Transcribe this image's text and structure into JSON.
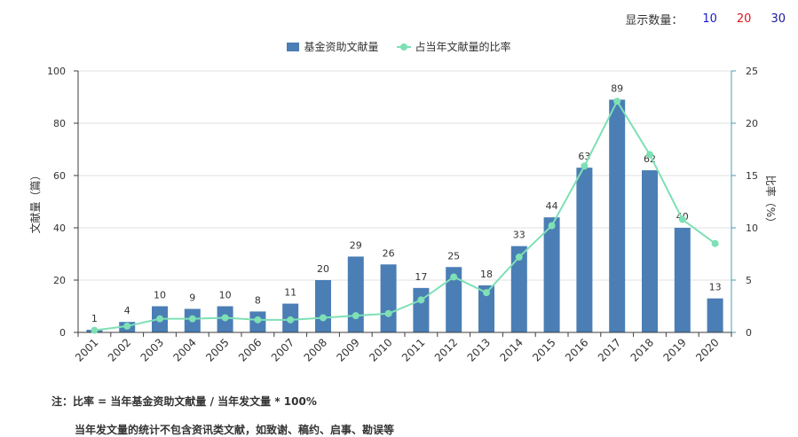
{
  "display_count": {
    "label": "显示数量：",
    "options": [
      "10",
      "20",
      "30"
    ]
  },
  "legend": {
    "bar_label": "基金资助文献量",
    "line_label": "占当年文献量的比率"
  },
  "notes": {
    "line1": "注：比率 = 当年基金资助文献量 / 当年发文量 * 100%",
    "line2": "当年发文量的统计不包含资讯类文献，如致谢、稿约、启事、勘误等"
  },
  "colors": {
    "bar": "#4a7eb5",
    "line": "#7ee0b5",
    "axis_left": "#3c3c3c",
    "axis_right": "#4a9fb0",
    "grid": "#e0e0e0"
  },
  "chart_data": {
    "type": "bar",
    "categories": [
      "2001",
      "2002",
      "2003",
      "2004",
      "2005",
      "2006",
      "2007",
      "2008",
      "2009",
      "2010",
      "2011",
      "2012",
      "2013",
      "2014",
      "2015",
      "2016",
      "2017",
      "2018",
      "2019",
      "2020"
    ],
    "series": [
      {
        "name": "基金资助文献量",
        "type": "bar",
        "axis": "left",
        "values": [
          1,
          4,
          10,
          9,
          10,
          8,
          11,
          20,
          29,
          26,
          17,
          25,
          18,
          33,
          44,
          63,
          89,
          62,
          40,
          13
        ],
        "data_labels": true
      },
      {
        "name": "占当年文献量的比率",
        "type": "line",
        "axis": "right",
        "values": [
          0.2,
          0.6,
          1.3,
          1.3,
          1.4,
          1.2,
          1.2,
          1.4,
          1.6,
          1.8,
          3.1,
          5.3,
          3.8,
          7.2,
          10.2,
          15.9,
          22.1,
          17.0,
          10.8,
          8.5
        ]
      }
    ],
    "ylabel": "文献量（篇）",
    "y2label": "比率（%）",
    "ylim": [
      0,
      100
    ],
    "y2lim": [
      0,
      25
    ],
    "yticks": [
      0,
      20,
      40,
      60,
      80,
      100
    ],
    "y2ticks": [
      0,
      5,
      10,
      15,
      20,
      25
    ],
    "grid": true,
    "legend_position": "top-center"
  }
}
